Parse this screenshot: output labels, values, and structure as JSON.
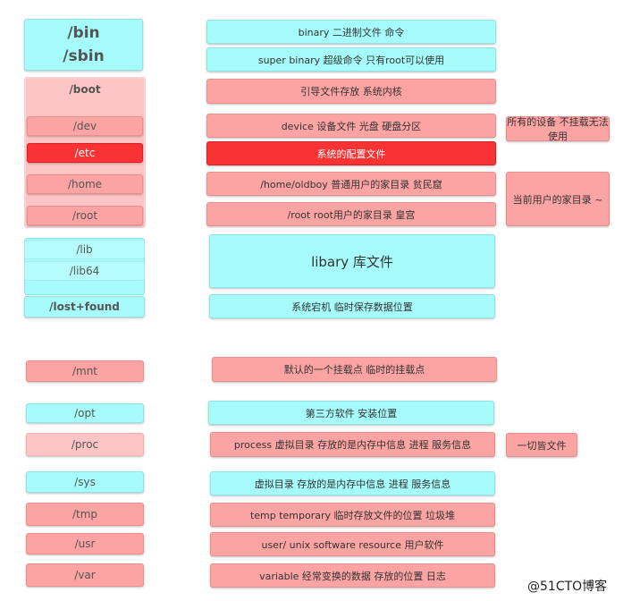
{
  "dirs": {
    "bin": "/bin",
    "sbin": "/sbin",
    "boot": "/boot",
    "dev": "/dev",
    "etc": "/etc",
    "home": "/home",
    "root": "/root",
    "lib": "/lib",
    "lib64": "/lib64",
    "lost_found": "/lost+found",
    "mnt": "/mnt",
    "opt": "/opt",
    "proc": "/proc",
    "sys": "/sys",
    "tmp": "/tmp",
    "usr": "/usr",
    "var": "/var"
  },
  "descriptions": {
    "bin": "binary 二进制文件 命令",
    "sbin": "super binary 超级命令  只有root可以使用",
    "boot": "引导文件存放  系统内核",
    "dev": "device  设备文件 光盘 硬盘分区",
    "etc": "系统的配置文件",
    "home": "/home/oldboy   普通用户的家目录 贫民窟",
    "root": "/root  root用户的家目录  皇宫",
    "lib": "libary 库文件",
    "lost_found": "系统宕机 临时保存数据位置",
    "mnt": "默认的一个挂载点  临时的挂载点",
    "opt": "第三方软件 安装位置",
    "proc": "process 虚拟目录  存放的是内存中信息 进程 服务信息",
    "sys": "虚拟目录  存放的是内存中信息 进程 服务信息",
    "tmp": "temp  temporary 临时存放文件的位置  垃圾堆",
    "usr": "user/ unix software resource 用户软件",
    "var": "variable 经常变换的数据 存放的位置 日志"
  },
  "notes": {
    "dev": "所有的设备 不挂载无法使用",
    "home_root": "当前用户的家目录 ~",
    "proc": "一切皆文件"
  },
  "watermark": "@51CTO博客",
  "colors": {
    "cyan": "#a6fbfb",
    "pink": "#fca3a3",
    "light_pink": "#fdc5c5",
    "red": "#f93333"
  }
}
